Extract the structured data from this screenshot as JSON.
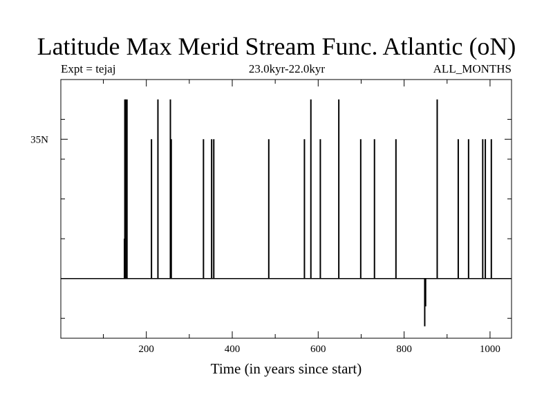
{
  "header": {
    "title": "Latitude Max Merid Stream Func. Atlantic (oN)",
    "experiment": "Expt = tejaj",
    "period": "23.0kyr-22.0kyr",
    "months": "ALL_MONTHS"
  },
  "chart_data": {
    "type": "line",
    "title": "Latitude Max Merid Stream Func. Atlantic (oN)",
    "xlabel": "Time (in years since start)",
    "ylabel": "",
    "xlim": [
      1,
      1050
    ],
    "ylim": [
      -15,
      50
    ],
    "x_ticks": [
      200,
      400,
      600,
      800,
      1000
    ],
    "x_minor_step": 100,
    "y_ticks": [
      {
        "value": 35,
        "label": "35N"
      }
    ],
    "y_minor_step": 10,
    "baseline": 0,
    "grid": false,
    "spikes": [
      {
        "x": 149,
        "y": 10
      },
      {
        "x": 150,
        "y": 45
      },
      {
        "x": 152,
        "y": 45
      },
      {
        "x": 155,
        "y": 45
      },
      {
        "x": 212,
        "y": 35
      },
      {
        "x": 227,
        "y": 45
      },
      {
        "x": 256,
        "y": 45
      },
      {
        "x": 258,
        "y": 35
      },
      {
        "x": 333,
        "y": 35
      },
      {
        "x": 352,
        "y": 35
      },
      {
        "x": 357,
        "y": 35
      },
      {
        "x": 485,
        "y": 35
      },
      {
        "x": 568,
        "y": 35
      },
      {
        "x": 583,
        "y": 45
      },
      {
        "x": 605,
        "y": 35
      },
      {
        "x": 648,
        "y": 45
      },
      {
        "x": 699,
        "y": 35
      },
      {
        "x": 731,
        "y": 35
      },
      {
        "x": 781,
        "y": 35
      },
      {
        "x": 848,
        "y": -12
      },
      {
        "x": 850,
        "y": -7
      },
      {
        "x": 877,
        "y": 45
      },
      {
        "x": 926,
        "y": 35
      },
      {
        "x": 950,
        "y": 35
      },
      {
        "x": 983,
        "y": 35
      },
      {
        "x": 989,
        "y": 35
      },
      {
        "x": 1003,
        "y": 35
      }
    ]
  }
}
